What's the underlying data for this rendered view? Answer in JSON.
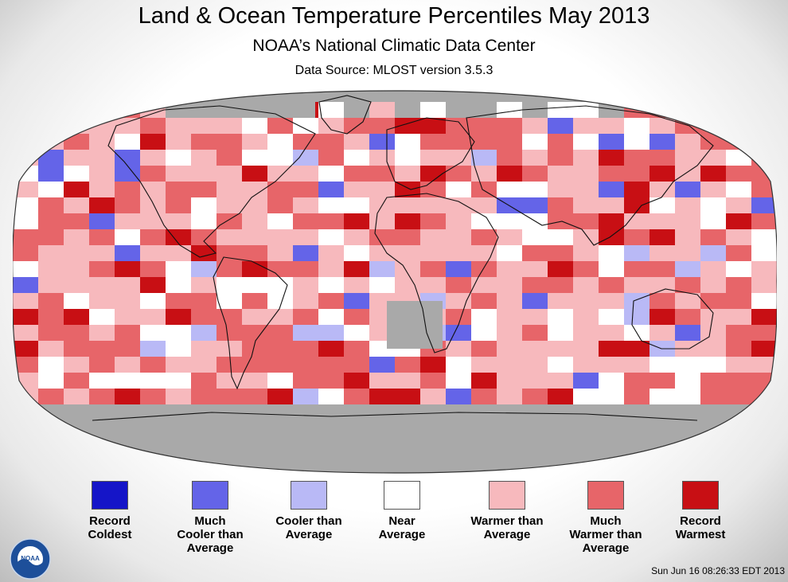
{
  "header": {
    "title": "Land & Ocean Temperature Percentiles May 2013",
    "subtitle": "NOAA’s National Climatic Data Center",
    "source": "Data Source: MLOST version 3.5.3"
  },
  "legend": {
    "items": [
      {
        "label": "Record\nColdest",
        "color": "#1515c8"
      },
      {
        "label": "Much\nCooler than\nAverage",
        "color": "#6464e8"
      },
      {
        "label": "Cooler than\nAverage",
        "color": "#b9b9f6"
      },
      {
        "label": "Near\nAverage",
        "color": "#ffffff"
      },
      {
        "label": "Warmer than\nAverage",
        "color": "#f7b9bd"
      },
      {
        "label": "Much\nWarmer than\nAverage",
        "color": "#e76569"
      },
      {
        "label": "Record\nWarmest",
        "color": "#c80f14"
      }
    ]
  },
  "map": {
    "projection": "robinson",
    "missing_color": "#a9a9a9",
    "boundary_color": "#111111"
  },
  "logo": {
    "text": "NOAA"
  },
  "footer": {
    "timestamp": "Sun Jun 16 08:26:33 EDT 2013"
  }
}
